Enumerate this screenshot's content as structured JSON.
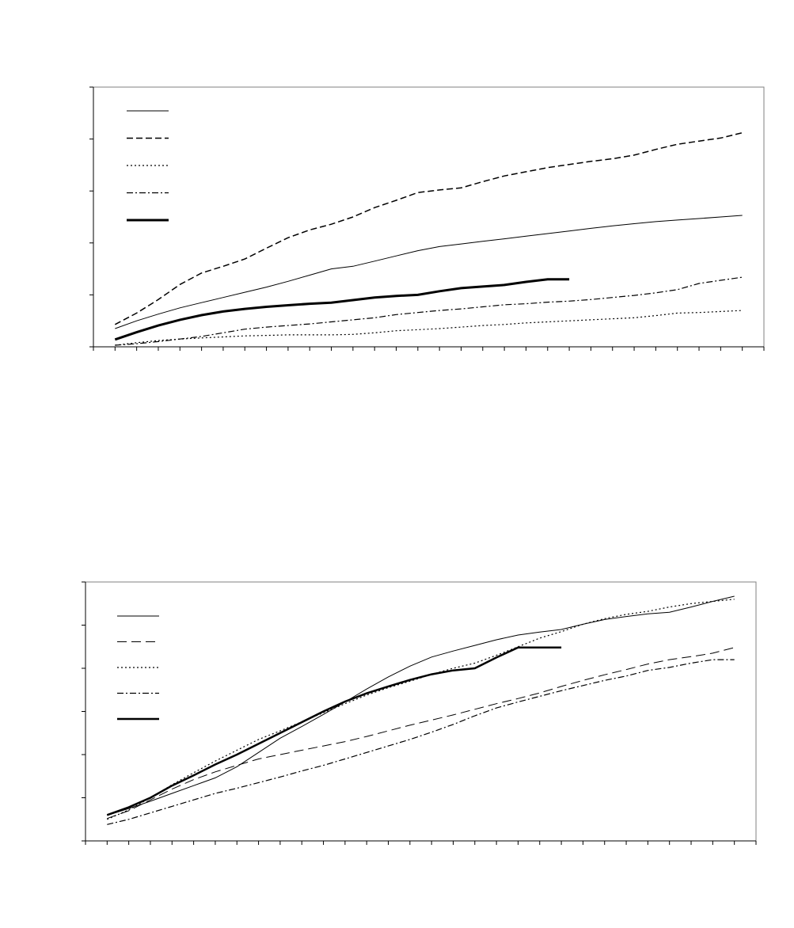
{
  "chart_data": [
    {
      "type": "line",
      "x": [
        1,
        2,
        3,
        4,
        5,
        6,
        7,
        8,
        9,
        10,
        11,
        12,
        13,
        14,
        15,
        16,
        17,
        18,
        19,
        20,
        21,
        22,
        23,
        24,
        25,
        26,
        27,
        28,
        29,
        30
      ],
      "xlim": [
        0,
        31
      ],
      "xticks": [
        0,
        1,
        2,
        3,
        4,
        5,
        6,
        7,
        8,
        9,
        10,
        11,
        12,
        13,
        14,
        15,
        16,
        17,
        18,
        19,
        20,
        21,
        22,
        23,
        24,
        25,
        26,
        27,
        28,
        29,
        30,
        31
      ],
      "ylim": [
        0,
        5
      ],
      "yticks": [
        0,
        1,
        2,
        3,
        4,
        5
      ],
      "series": [
        {
          "color": "#000000",
          "dash": "solid",
          "width": 1,
          "values": [
            0.35,
            0.5,
            0.63,
            0.75,
            0.85,
            0.95,
            1.05,
            1.15,
            1.26,
            1.38,
            1.5,
            1.55,
            1.65,
            1.75,
            1.85,
            1.93,
            1.98,
            2.03,
            2.08,
            2.13,
            2.18,
            2.23,
            2.28,
            2.33,
            2.37,
            2.41,
            2.44,
            2.47,
            2.5,
            2.53
          ]
        },
        {
          "color": "#000000",
          "dash": "dashed",
          "width": 1.5,
          "values": [
            0.43,
            0.65,
            0.91,
            1.2,
            1.42,
            1.55,
            1.69,
            1.9,
            2.1,
            2.25,
            2.36,
            2.5,
            2.68,
            2.82,
            2.97,
            3.02,
            3.06,
            3.18,
            3.29,
            3.37,
            3.45,
            3.51,
            3.57,
            3.62,
            3.69,
            3.8,
            3.9,
            3.96,
            4.02,
            4.12
          ]
        },
        {
          "color": "#000000",
          "dash": "dotted",
          "width": 1.2,
          "values": [
            0.03,
            0.08,
            0.12,
            0.15,
            0.17,
            0.19,
            0.21,
            0.22,
            0.23,
            0.23,
            0.23,
            0.24,
            0.27,
            0.31,
            0.33,
            0.35,
            0.38,
            0.41,
            0.43,
            0.46,
            0.48,
            0.5,
            0.52,
            0.54,
            0.56,
            0.6,
            0.65,
            0.66,
            0.68,
            0.7
          ]
        },
        {
          "color": "#000000",
          "dash": "dashdot",
          "width": 1.2,
          "values": [
            0.03,
            0.06,
            0.1,
            0.15,
            0.2,
            0.27,
            0.34,
            0.38,
            0.41,
            0.44,
            0.48,
            0.52,
            0.56,
            0.62,
            0.66,
            0.7,
            0.73,
            0.77,
            0.81,
            0.83,
            0.86,
            0.88,
            0.91,
            0.95,
            0.99,
            1.04,
            1.1,
            1.22,
            1.28,
            1.34
          ]
        },
        {
          "color": "#000000",
          "dash": "solid",
          "width": 3,
          "values": [
            0.14,
            0.28,
            0.41,
            0.52,
            0.61,
            0.68,
            0.73,
            0.77,
            0.8,
            0.83,
            0.85,
            0.9,
            0.95,
            0.98,
            1.0,
            1.07,
            1.13,
            1.16,
            1.19,
            1.25,
            1.3,
            1.3,
            null,
            null,
            null,
            null,
            null,
            null,
            null,
            null
          ]
        }
      ]
    },
    {
      "type": "line",
      "x": [
        1,
        2,
        3,
        4,
        5,
        6,
        7,
        8,
        9,
        10,
        11,
        12,
        13,
        14,
        15,
        16,
        17,
        18,
        19,
        20,
        21,
        22,
        23,
        24,
        25,
        26,
        27,
        28,
        29,
        30
      ],
      "xlim": [
        0,
        31
      ],
      "xticks": [
        0,
        1,
        2,
        3,
        4,
        5,
        6,
        7,
        8,
        9,
        10,
        11,
        12,
        13,
        14,
        15,
        16,
        17,
        18,
        19,
        20,
        21,
        22,
        23,
        24,
        25,
        26,
        27,
        28,
        29,
        30,
        31
      ],
      "ylim": [
        0,
        6
      ],
      "yticks": [
        0,
        1,
        2,
        3,
        4,
        5,
        6
      ],
      "series": [
        {
          "color": "#000000",
          "dash": "solid",
          "width": 1,
          "values": [
            0.59,
            0.75,
            0.92,
            1.1,
            1.28,
            1.46,
            1.72,
            2.05,
            2.38,
            2.65,
            2.93,
            3.22,
            3.52,
            3.8,
            4.05,
            4.26,
            4.4,
            4.53,
            4.66,
            4.77,
            4.84,
            4.9,
            5.02,
            5.13,
            5.2,
            5.26,
            5.3,
            5.42,
            5.55,
            5.67
          ]
        },
        {
          "color": "#000000",
          "dash": "longdash",
          "width": 1,
          "values": [
            0.52,
            0.7,
            0.95,
            1.2,
            1.42,
            1.6,
            1.75,
            1.9,
            2.0,
            2.1,
            2.2,
            2.3,
            2.42,
            2.55,
            2.68,
            2.8,
            2.92,
            3.05,
            3.18,
            3.3,
            3.43,
            3.58,
            3.72,
            3.85,
            3.97,
            4.1,
            4.2,
            4.27,
            4.35,
            4.48
          ]
        },
        {
          "color": "#000000",
          "dash": "dotted",
          "width": 1.2,
          "values": [
            0.5,
            0.72,
            1.0,
            1.3,
            1.58,
            1.85,
            2.1,
            2.35,
            2.55,
            2.76,
            2.97,
            3.18,
            3.38,
            3.55,
            3.7,
            3.86,
            4.0,
            4.12,
            4.3,
            4.5,
            4.7,
            4.85,
            5.02,
            5.15,
            5.25,
            5.32,
            5.42,
            5.5,
            5.55,
            5.6
          ]
        },
        {
          "color": "#000000",
          "dash": "dashdot",
          "width": 1.2,
          "values": [
            0.38,
            0.5,
            0.65,
            0.8,
            0.95,
            1.1,
            1.22,
            1.35,
            1.48,
            1.62,
            1.75,
            1.9,
            2.05,
            2.2,
            2.35,
            2.52,
            2.7,
            2.9,
            3.08,
            3.22,
            3.35,
            3.48,
            3.6,
            3.72,
            3.82,
            3.95,
            4.02,
            4.12,
            4.2,
            4.2
          ]
        },
        {
          "color": "#000000",
          "dash": "solid",
          "width": 2.5,
          "values": [
            0.6,
            0.78,
            1.0,
            1.28,
            1.52,
            1.77,
            2.0,
            2.25,
            2.5,
            2.75,
            3.0,
            3.23,
            3.42,
            3.58,
            3.73,
            3.86,
            3.95,
            4.0,
            4.25,
            4.48,
            4.48,
            4.48,
            null,
            null,
            null,
            null,
            null,
            null,
            null,
            null
          ]
        }
      ]
    }
  ]
}
